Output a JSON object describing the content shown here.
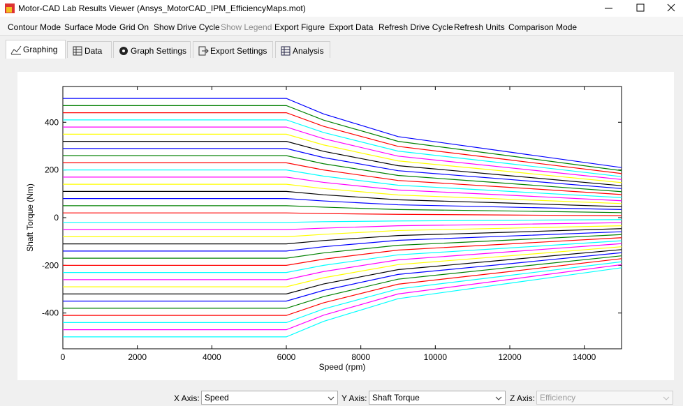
{
  "window": {
    "title": "Motor-CAD Lab Results Viewer (Ansys_MotorCAD_IPM_EfficiencyMaps.mot)"
  },
  "menu": [
    "Contour Mode",
    "Surface Mode",
    "Grid On",
    "Show Drive Cycle",
    "Show Legend",
    "Export Figure",
    "Export Data",
    "Refresh Drive Cycle",
    "Refresh Units",
    "Comparison Mode"
  ],
  "tabs": [
    "Graphing",
    "Data",
    "Graph Settings",
    "Export Settings",
    "Analysis"
  ],
  "controls": {
    "x_axis_label": "X Axis:",
    "x_axis_value": "Speed",
    "y_axis_label": "Y Axis:",
    "y_axis_value": "Shaft Torque",
    "z_axis_label": "Z Axis:",
    "z_axis_value": "Efficiency"
  },
  "chart_data": {
    "type": "line",
    "x_label": "Speed  (rpm)",
    "y_label": "Shaft Torque  (Nm)",
    "x": [
      0,
      6000,
      7000,
      9000,
      12000,
      15000
    ],
    "xlim": [
      0,
      15000
    ],
    "xticks": [
      0,
      2000,
      4000,
      6000,
      8000,
      10000,
      12000,
      14000
    ],
    "ylim": [
      -550,
      550
    ],
    "yticks": [
      -400,
      -200,
      0,
      200,
      400
    ],
    "series": [
      {
        "color": "#0000ff",
        "values": [
          500,
          500,
          435,
          340,
          275,
          210
        ]
      },
      {
        "color": "#008000",
        "values": [
          470,
          470,
          409,
          320,
          259,
          197
        ]
      },
      {
        "color": "#ff0000",
        "values": [
          440,
          440,
          383,
          299,
          242,
          185
        ]
      },
      {
        "color": "#00ffff",
        "values": [
          410,
          410,
          357,
          279,
          226,
          172
        ]
      },
      {
        "color": "#ff00ff",
        "values": [
          380,
          380,
          331,
          258,
          209,
          160
        ]
      },
      {
        "color": "#ffff00",
        "values": [
          350,
          350,
          305,
          238,
          193,
          147
        ]
      },
      {
        "color": "#000000",
        "values": [
          320,
          320,
          278,
          218,
          176,
          134
        ]
      },
      {
        "color": "#0000ff",
        "values": [
          290,
          290,
          252,
          197,
          160,
          122
        ]
      },
      {
        "color": "#008000",
        "values": [
          260,
          260,
          226,
          177,
          143,
          109
        ]
      },
      {
        "color": "#ff0000",
        "values": [
          230,
          230,
          200,
          156,
          127,
          97
        ]
      },
      {
        "color": "#00ffff",
        "values": [
          200,
          200,
          174,
          136,
          110,
          84
        ]
      },
      {
        "color": "#ff00ff",
        "values": [
          170,
          170,
          148,
          116,
          94,
          71
        ]
      },
      {
        "color": "#ffff00",
        "values": [
          140,
          140,
          122,
          95,
          77,
          59
        ]
      },
      {
        "color": "#000000",
        "values": [
          110,
          110,
          96,
          75,
          61,
          46
        ]
      },
      {
        "color": "#0000ff",
        "values": [
          80,
          80,
          70,
          54,
          44,
          34
        ]
      },
      {
        "color": "#008000",
        "values": [
          50,
          50,
          44,
          34,
          28,
          21
        ]
      },
      {
        "color": "#ff0000",
        "values": [
          20,
          20,
          17,
          14,
          11,
          8
        ]
      },
      {
        "color": "#00ffff",
        "values": [
          -20,
          -20,
          -17,
          -14,
          -11,
          -8
        ]
      },
      {
        "color": "#ff00ff",
        "values": [
          -50,
          -50,
          -44,
          -34,
          -28,
          -21
        ]
      },
      {
        "color": "#ffff00",
        "values": [
          -80,
          -80,
          -70,
          -54,
          -44,
          -34
        ]
      },
      {
        "color": "#000000",
        "values": [
          -110,
          -110,
          -96,
          -75,
          -61,
          -46
        ]
      },
      {
        "color": "#0000ff",
        "values": [
          -140,
          -140,
          -122,
          -95,
          -77,
          -59
        ]
      },
      {
        "color": "#008000",
        "values": [
          -170,
          -170,
          -148,
          -116,
          -94,
          -71
        ]
      },
      {
        "color": "#ff0000",
        "values": [
          -200,
          -200,
          -174,
          -136,
          -110,
          -84
        ]
      },
      {
        "color": "#00ffff",
        "values": [
          -230,
          -230,
          -200,
          -156,
          -127,
          -97
        ]
      },
      {
        "color": "#ff00ff",
        "values": [
          -260,
          -260,
          -226,
          -177,
          -143,
          -109
        ]
      },
      {
        "color": "#ffff00",
        "values": [
          -290,
          -290,
          -252,
          -197,
          -160,
          -122
        ]
      },
      {
        "color": "#000000",
        "values": [
          -320,
          -320,
          -278,
          -218,
          -176,
          -134
        ]
      },
      {
        "color": "#0000ff",
        "values": [
          -350,
          -350,
          -305,
          -238,
          -193,
          -147
        ]
      },
      {
        "color": "#008000",
        "values": [
          -380,
          -380,
          -331,
          -258,
          -209,
          -160
        ]
      },
      {
        "color": "#ff0000",
        "values": [
          -410,
          -410,
          -357,
          -279,
          -226,
          -172
        ]
      },
      {
        "color": "#00ffff",
        "values": [
          -440,
          -440,
          -383,
          -299,
          -242,
          -185
        ]
      },
      {
        "color": "#ff00ff",
        "values": [
          -470,
          -470,
          -409,
          -320,
          -259,
          -197
        ]
      },
      {
        "color": "#00ffff",
        "values": [
          -500,
          -500,
          -435,
          -340,
          -275,
          -210
        ]
      }
    ]
  }
}
